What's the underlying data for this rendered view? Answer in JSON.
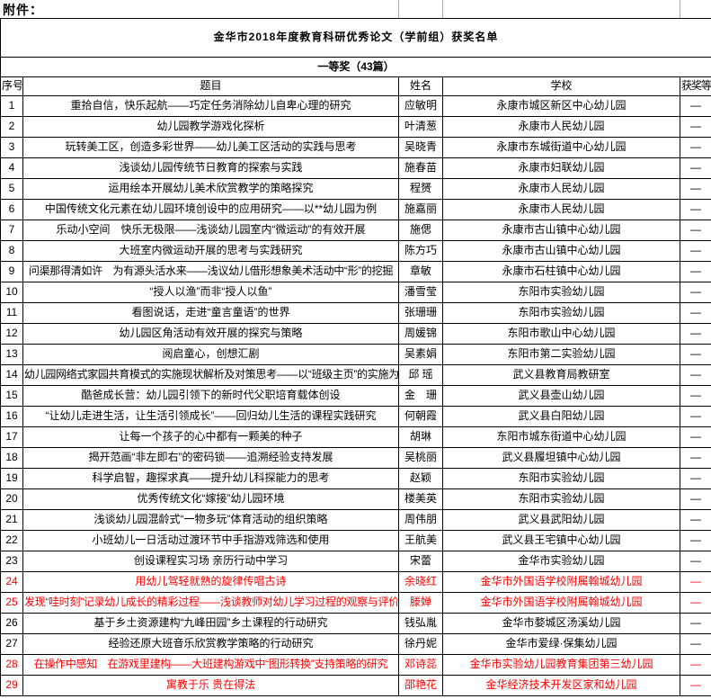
{
  "page": {
    "attachment_label": "附件："
  },
  "title": "金华市2018年度教育科研优秀论文（学前组）获奖名单",
  "section": {
    "label": "一等奖（43篇）"
  },
  "colors": {
    "highlight": "#ff0000",
    "grid": "#000000"
  },
  "table": {
    "headers": {
      "no": "序号",
      "title": "题目",
      "name": "姓名",
      "school": "学校",
      "award": "获奖等级"
    },
    "rows": [
      {
        "no": "1",
        "title": "重拾自信，快乐起航——巧定任务消除幼儿自卑心理的研究",
        "name": "应敏明",
        "school": "永康市城区新区中心幼儿园",
        "award": "—",
        "highlighted": false,
        "small": false
      },
      {
        "no": "2",
        "title": "幼儿园教学游戏化探析",
        "name": "叶清葱",
        "school": "永康市人民幼儿园",
        "award": "—",
        "highlighted": false,
        "small": false
      },
      {
        "no": "3",
        "title": "玩转美工区，创造多彩世界——幼儿美工区活动的实践与思考",
        "name": "吴晓青",
        "school": "永康市东城街道中心幼儿园",
        "award": "—",
        "highlighted": false,
        "small": false
      },
      {
        "no": "4",
        "title": "浅谈幼儿园传统节日教育的探索与实践",
        "name": "施春苗",
        "school": "永康市妇联幼儿园",
        "award": "—",
        "highlighted": false,
        "small": false
      },
      {
        "no": "5",
        "title": "运用绘本开展幼儿美术欣赏教学的策略探究",
        "name": "程赟",
        "school": "永康市人民幼儿园",
        "award": "—",
        "highlighted": false,
        "small": false
      },
      {
        "no": "6",
        "title": "中国传统文化元素在幼儿园环境创设中的应用研究——以**幼儿园为例",
        "name": "施嘉丽",
        "school": "永康市人民幼儿园",
        "award": "—",
        "highlighted": false,
        "small": false
      },
      {
        "no": "7",
        "title": "乐动小空间　快乐无极限——浅谈幼儿园室内“微运动”的有效开展",
        "name": "施偲",
        "school": "永康市古山镇中心幼儿园",
        "award": "—",
        "highlighted": false,
        "small": false
      },
      {
        "no": "8",
        "title": "大班室内微运动开展的思考与实践研究",
        "name": "陈方巧",
        "school": "永康市古山镇中心幼儿园",
        "award": "—",
        "highlighted": false,
        "small": false
      },
      {
        "no": "9",
        "title": "问渠那得清如许　为有源头活水来——浅议幼儿借形想象美术活动中“形”的挖掘",
        "name": "章敏",
        "school": "永康市石柱镇中心幼儿园",
        "award": "—",
        "highlighted": false,
        "small": true
      },
      {
        "no": "10",
        "title": "“授人以渔”而非“授人以鱼”",
        "name": "潘雪莹",
        "school": "东阳市实验幼儿园",
        "award": "—",
        "highlighted": false,
        "small": false
      },
      {
        "no": "11",
        "title": "看图说话，走进“童言童语”的世界",
        "name": "张珊珊",
        "school": "东阳市实验幼儿园",
        "award": "—",
        "highlighted": false,
        "small": false
      },
      {
        "no": "12",
        "title": "幼儿园区角活动有效开展的探究与策略",
        "name": "周媛锦",
        "school": "东阳市歌山中心幼儿园",
        "award": "—",
        "highlighted": false,
        "small": false
      },
      {
        "no": "13",
        "title": "阅启童心，创想汇剧",
        "name": "吴素娟",
        "school": "东阳市第二实验幼儿园",
        "award": "—",
        "highlighted": false,
        "small": false
      },
      {
        "no": "14",
        "title": "幼儿园网络式家园共育模式的实施现状解析及对策思考——以“班级主页”的实施为例",
        "name": "邱 瑶",
        "school": "武义县教育局教研室",
        "award": "—",
        "highlighted": false,
        "small": true
      },
      {
        "no": "15",
        "title": "酷爸成长营：幼儿园引领下的新时代父职培育载体创设",
        "name": "金　珊",
        "school": "武义县壶山幼儿园",
        "award": "—",
        "highlighted": false,
        "small": false
      },
      {
        "no": "16",
        "title": "“让幼儿走进生活，让生活引领成长”——回归幼儿生活的课程实践研究",
        "name": "何朝霞",
        "school": "武义县白阳幼儿园",
        "award": "—",
        "highlighted": false,
        "small": false
      },
      {
        "no": "17",
        "title": "让每一个孩子的心中都有一颗美的种子",
        "name": "胡琳",
        "school": "东阳市城东街道中心幼儿园",
        "award": "—",
        "highlighted": false,
        "small": false
      },
      {
        "no": "18",
        "title": "揭开范画“非左即右”的密码锁——追溯经验支持发展",
        "name": "吴桃丽",
        "school": "武义县履坦镇中心幼儿园",
        "award": "—",
        "highlighted": false,
        "small": false
      },
      {
        "no": "19",
        "title": "科学启智，趣探求真——提升幼儿科探能力的思考",
        "name": "赵颖",
        "school": "东阳市实验幼儿园",
        "award": "—",
        "highlighted": false,
        "small": false
      },
      {
        "no": "20",
        "title": "优秀传统文化“嫁接”幼儿园环境",
        "name": "楼美英",
        "school": "东阳市实验幼儿园",
        "award": "—",
        "highlighted": false,
        "small": false
      },
      {
        "no": "21",
        "title": "浅谈幼儿园混龄式“一物多玩”体育活动的组织策略",
        "name": "周伟朋",
        "school": "武义县武阳幼儿园",
        "award": "—",
        "highlighted": false,
        "small": false
      },
      {
        "no": "22",
        "title": "小班幼儿一日活动过渡环节中手指游戏筛选和使用",
        "name": "王航美",
        "school": "武义县王宅镇中心幼儿园",
        "award": "—",
        "highlighted": false,
        "small": false
      },
      {
        "no": "23",
        "title": "创设课程实习场 亲历行动中学习",
        "name": "宋蕾",
        "school": "金华市实验幼儿园",
        "award": "—",
        "highlighted": false,
        "small": false
      },
      {
        "no": "24",
        "title": "用幼儿驾轻就熟的旋律传唱古诗",
        "name": "余晓红",
        "school": "金华市外国语学校附属翰城幼儿园",
        "award": "—",
        "highlighted": true,
        "small": false
      },
      {
        "no": "25",
        "title": "发现“哇时刻”记录幼儿成长的精彩过程——浅谈教师对幼儿学习过程的观察与评价",
        "name": "滕婵",
        "school": "金华市外国语学校附属翰城幼儿园",
        "award": "—",
        "highlighted": true,
        "small": true
      },
      {
        "no": "26",
        "title": "基于乡土资源建构“九峰田园”乡土课程的行动研究",
        "name": "钱弘胤",
        "school": "金华市婺城区汤溪幼儿园",
        "award": "—",
        "highlighted": false,
        "small": false
      },
      {
        "no": "27",
        "title": "经验还原大班音乐欣赏教学策略的行动研究",
        "name": "徐丹妮",
        "school": "金华市爱绿·保集幼儿园",
        "award": "—",
        "highlighted": false,
        "small": false
      },
      {
        "no": "28",
        "title": "在操作中感知　在游戏里建构——大班建构游戏中“图形转换”支持策略的研究",
        "name": "邓诗蕊",
        "school": "金华市实验幼儿园教育集团第三幼儿园",
        "award": "—",
        "highlighted": true,
        "small": true
      },
      {
        "no": "29",
        "title": "寓教于乐 贵在得法",
        "name": "邵艳花",
        "school": "金华经济技术开发区家和幼儿园",
        "award": "—",
        "highlighted": true,
        "small": false
      }
    ]
  }
}
